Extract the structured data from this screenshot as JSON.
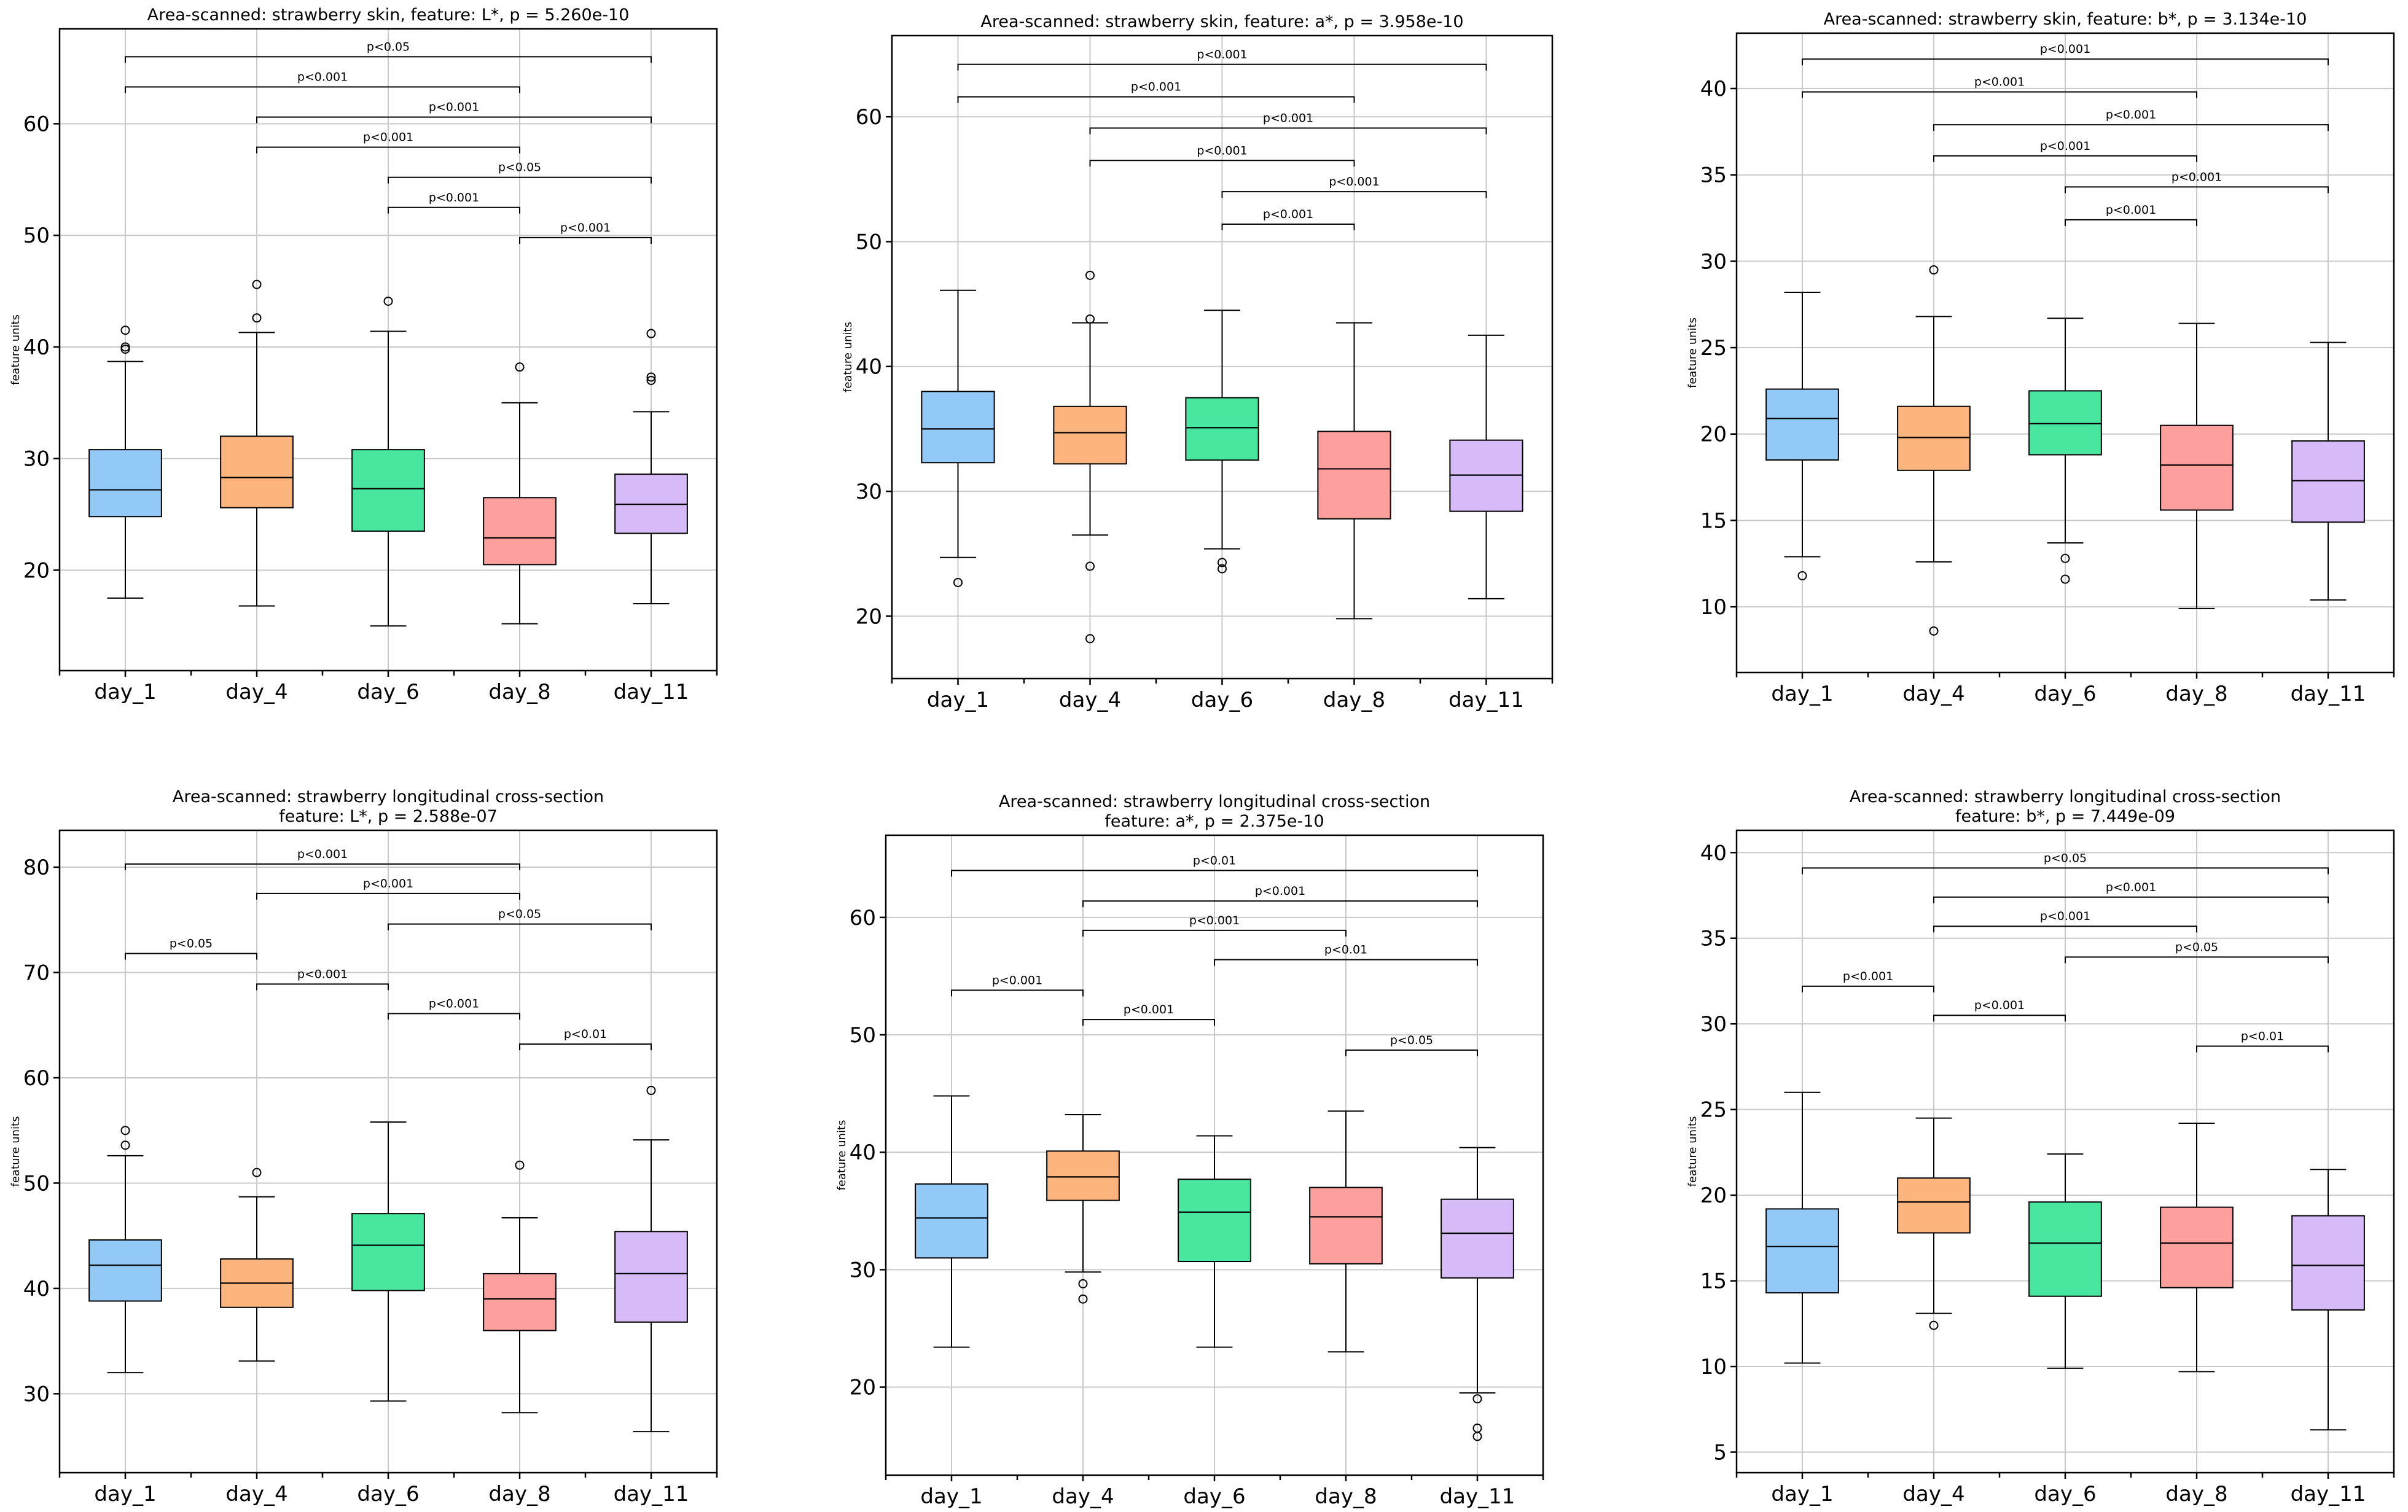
{
  "figure": {
    "colors": {
      "day_1": "#92c9f6",
      "day_4": "#fdb47d",
      "day_6": "#49e6a0",
      "day_8": "#fd9f9c",
      "day_11": "#d7bbf9",
      "grid": "#c9c9c9",
      "ink": "#000000"
    }
  },
  "chart_data": [
    {
      "type": "box",
      "title": [
        "Area-scanned: strawberry skin, feature: L*, p = 5.260e-10"
      ],
      "ylabel": "feature units",
      "categories": [
        "day_1",
        "day_4",
        "day_6",
        "day_8",
        "day_11"
      ],
      "ylim": [
        11,
        68.5
      ],
      "yticks": [
        20,
        30,
        40,
        50,
        60
      ],
      "boxes": [
        {
          "name": "day_1",
          "whislo": 17.5,
          "q1": 24.8,
          "med": 27.2,
          "q3": 30.8,
          "whishi": 38.7,
          "fliers": [
            39.8,
            40.0,
            41.5
          ]
        },
        {
          "name": "day_4",
          "whislo": 16.8,
          "q1": 25.6,
          "med": 28.3,
          "q3": 32.0,
          "whishi": 41.3,
          "fliers": [
            42.6,
            45.6
          ]
        },
        {
          "name": "day_6",
          "whislo": 15.0,
          "q1": 23.5,
          "med": 27.3,
          "q3": 30.8,
          "whishi": 41.4,
          "fliers": [
            44.1
          ]
        },
        {
          "name": "day_8",
          "whislo": 15.2,
          "q1": 20.5,
          "med": 22.9,
          "q3": 26.5,
          "whishi": 35.0,
          "fliers": [
            38.2
          ]
        },
        {
          "name": "day_11",
          "whislo": 17.0,
          "q1": 23.3,
          "med": 25.9,
          "q3": 28.6,
          "whishi": 34.2,
          "fliers": [
            37.0,
            37.3,
            41.2
          ]
        }
      ],
      "brackets": [
        {
          "from": 0,
          "to": 4,
          "y": 66.0,
          "label": "p<0.05"
        },
        {
          "from": 0,
          "to": 3,
          "y": 63.3,
          "label": "p<0.001"
        },
        {
          "from": 1,
          "to": 4,
          "y": 60.6,
          "label": "p<0.001"
        },
        {
          "from": 1,
          "to": 3,
          "y": 57.9,
          "label": "p<0.001"
        },
        {
          "from": 2,
          "to": 4,
          "y": 55.2,
          "label": "p<0.05"
        },
        {
          "from": 2,
          "to": 3,
          "y": 52.5,
          "label": "p<0.001"
        },
        {
          "from": 3,
          "to": 4,
          "y": 49.8,
          "label": "p<0.001"
        }
      ]
    },
    {
      "type": "box",
      "title": [
        "Area-scanned: strawberry skin, feature: a*, p = 3.958e-10"
      ],
      "ylabel": "feature units",
      "categories": [
        "day_1",
        "day_4",
        "day_6",
        "day_8",
        "day_11"
      ],
      "ylim": [
        15,
        66.5
      ],
      "yticks": [
        20,
        30,
        40,
        50,
        60
      ],
      "boxes": [
        {
          "name": "day_1",
          "whislo": 24.7,
          "q1": 32.3,
          "med": 35.0,
          "q3": 38.0,
          "whishi": 46.1,
          "fliers": [
            22.7
          ]
        },
        {
          "name": "day_4",
          "whislo": 26.5,
          "q1": 32.2,
          "med": 34.7,
          "q3": 36.8,
          "whishi": 43.5,
          "fliers": [
            24.0,
            18.2,
            43.8,
            47.3
          ]
        },
        {
          "name": "day_6",
          "whislo": 25.4,
          "q1": 32.5,
          "med": 35.1,
          "q3": 37.5,
          "whishi": 44.5,
          "fliers": [
            23.8,
            24.3
          ]
        },
        {
          "name": "day_8",
          "whislo": 19.8,
          "q1": 27.8,
          "med": 31.8,
          "q3": 34.8,
          "whishi": 43.5,
          "fliers": []
        },
        {
          "name": "day_11",
          "whislo": 21.4,
          "q1": 28.4,
          "med": 31.3,
          "q3": 34.1,
          "whishi": 42.5,
          "fliers": []
        }
      ],
      "brackets": [
        {
          "from": 0,
          "to": 4,
          "y": 64.2,
          "label": "p<0.001"
        },
        {
          "from": 0,
          "to": 3,
          "y": 61.6,
          "label": "p<0.001"
        },
        {
          "from": 1,
          "to": 4,
          "y": 59.1,
          "label": "p<0.001"
        },
        {
          "from": 1,
          "to": 3,
          "y": 56.5,
          "label": "p<0.001"
        },
        {
          "from": 2,
          "to": 4,
          "y": 54.0,
          "label": "p<0.001"
        },
        {
          "from": 2,
          "to": 3,
          "y": 51.4,
          "label": "p<0.001"
        }
      ]
    },
    {
      "type": "box",
      "title": [
        "Area-scanned: strawberry skin, feature: b*, p = 3.134e-10"
      ],
      "ylabel": "feature units",
      "categories": [
        "day_1",
        "day_4",
        "day_6",
        "day_8",
        "day_11"
      ],
      "ylim": [
        6.2,
        43.2
      ],
      "yticks": [
        10,
        15,
        20,
        25,
        30,
        35,
        40
      ],
      "boxes": [
        {
          "name": "day_1",
          "whislo": 12.9,
          "q1": 18.5,
          "med": 20.9,
          "q3": 22.6,
          "whishi": 28.2,
          "fliers": [
            11.8
          ]
        },
        {
          "name": "day_4",
          "whislo": 12.6,
          "q1": 17.9,
          "med": 19.8,
          "q3": 21.6,
          "whishi": 26.8,
          "fliers": [
            8.6,
            29.5
          ]
        },
        {
          "name": "day_6",
          "whislo": 13.7,
          "q1": 18.8,
          "med": 20.6,
          "q3": 22.5,
          "whishi": 26.7,
          "fliers": [
            12.8,
            11.6
          ]
        },
        {
          "name": "day_8",
          "whislo": 9.9,
          "q1": 15.6,
          "med": 18.2,
          "q3": 20.5,
          "whishi": 26.4,
          "fliers": []
        },
        {
          "name": "day_11",
          "whislo": 10.4,
          "q1": 14.9,
          "med": 17.3,
          "q3": 19.6,
          "whishi": 25.3,
          "fliers": []
        }
      ],
      "brackets": [
        {
          "from": 0,
          "to": 4,
          "y": 41.7,
          "label": "p<0.001"
        },
        {
          "from": 0,
          "to": 3,
          "y": 39.8,
          "label": "p<0.001"
        },
        {
          "from": 1,
          "to": 4,
          "y": 37.9,
          "label": "p<0.001"
        },
        {
          "from": 1,
          "to": 3,
          "y": 36.1,
          "label": "p<0.001"
        },
        {
          "from": 2,
          "to": 4,
          "y": 34.3,
          "label": "p<0.001"
        },
        {
          "from": 2,
          "to": 3,
          "y": 32.4,
          "label": "p<0.001"
        }
      ]
    },
    {
      "type": "box",
      "title": [
        "Area-scanned: strawberry longitudinal cross-section",
        "feature: L*, p = 2.588e-07"
      ],
      "ylabel": "feature units",
      "categories": [
        "day_1",
        "day_4",
        "day_6",
        "day_8",
        "day_11"
      ],
      "ylim": [
        22.5,
        83.5
      ],
      "yticks": [
        30,
        40,
        50,
        60,
        70,
        80
      ],
      "boxes": [
        {
          "name": "day_1",
          "whislo": 32.0,
          "q1": 38.8,
          "med": 42.2,
          "q3": 44.6,
          "whishi": 52.6,
          "fliers": [
            53.6,
            55.0
          ]
        },
        {
          "name": "day_4",
          "whislo": 33.1,
          "q1": 38.2,
          "med": 40.5,
          "q3": 42.8,
          "whishi": 48.7,
          "fliers": [
            51.0
          ]
        },
        {
          "name": "day_6",
          "whislo": 29.3,
          "q1": 39.8,
          "med": 44.1,
          "q3": 47.1,
          "whishi": 55.8,
          "fliers": []
        },
        {
          "name": "day_8",
          "whislo": 28.2,
          "q1": 36.0,
          "med": 39.0,
          "q3": 41.4,
          "whishi": 46.7,
          "fliers": [
            51.7
          ]
        },
        {
          "name": "day_11",
          "whislo": 26.4,
          "q1": 36.8,
          "med": 41.4,
          "q3": 45.4,
          "whishi": 54.1,
          "fliers": [
            58.8
          ]
        }
      ],
      "brackets": [
        {
          "from": 0,
          "to": 3,
          "y": 80.3,
          "label": "p<0.001"
        },
        {
          "from": 1,
          "to": 3,
          "y": 77.5,
          "label": "p<0.001"
        },
        {
          "from": 2,
          "to": 4,
          "y": 74.6,
          "label": "p<0.05"
        },
        {
          "from": 0,
          "to": 1,
          "y": 71.8,
          "label": "p<0.05"
        },
        {
          "from": 1,
          "to": 2,
          "y": 68.9,
          "label": "p<0.001"
        },
        {
          "from": 2,
          "to": 3,
          "y": 66.1,
          "label": "p<0.001"
        },
        {
          "from": 3,
          "to": 4,
          "y": 63.2,
          "label": "p<0.01"
        }
      ]
    },
    {
      "type": "box",
      "title": [
        "Area-scanned: strawberry longitudinal cross-section",
        "feature: a*, p = 2.375e-10"
      ],
      "ylabel": "feature units",
      "categories": [
        "day_1",
        "day_4",
        "day_6",
        "day_8",
        "day_11"
      ],
      "ylim": [
        12.5,
        67
      ],
      "yticks": [
        20,
        30,
        40,
        50,
        60
      ],
      "boxes": [
        {
          "name": "day_1",
          "whislo": 23.4,
          "q1": 31.0,
          "med": 34.4,
          "q3": 37.3,
          "whishi": 44.8,
          "fliers": []
        },
        {
          "name": "day_4",
          "whislo": 29.8,
          "q1": 35.9,
          "med": 37.9,
          "q3": 40.1,
          "whishi": 43.2,
          "fliers": [
            28.8,
            27.5
          ]
        },
        {
          "name": "day_6",
          "whislo": 23.4,
          "q1": 30.7,
          "med": 34.9,
          "q3": 37.7,
          "whishi": 41.4,
          "fliers": []
        },
        {
          "name": "day_8",
          "whislo": 23.0,
          "q1": 30.5,
          "med": 34.5,
          "q3": 37.0,
          "whishi": 43.5,
          "fliers": []
        },
        {
          "name": "day_11",
          "whislo": 19.5,
          "q1": 29.3,
          "med": 33.1,
          "q3": 36.0,
          "whishi": 40.4,
          "fliers": [
            19.0,
            16.5,
            15.8
          ]
        }
      ],
      "brackets": [
        {
          "from": 0,
          "to": 4,
          "y": 64.0,
          "label": "p<0.01"
        },
        {
          "from": 1,
          "to": 4,
          "y": 61.4,
          "label": "p<0.001"
        },
        {
          "from": 1,
          "to": 3,
          "y": 58.9,
          "label": "p<0.001"
        },
        {
          "from": 2,
          "to": 4,
          "y": 56.4,
          "label": "p<0.01"
        },
        {
          "from": 0,
          "to": 1,
          "y": 53.8,
          "label": "p<0.001"
        },
        {
          "from": 1,
          "to": 2,
          "y": 51.3,
          "label": "p<0.001"
        },
        {
          "from": 3,
          "to": 4,
          "y": 48.7,
          "label": "p<0.05"
        }
      ]
    },
    {
      "type": "box",
      "title": [
        "Area-scanned: strawberry longitudinal cross-section",
        "feature: b*, p = 7.449e-09"
      ],
      "ylabel": "feature units",
      "categories": [
        "day_1",
        "day_4",
        "day_6",
        "day_8",
        "day_11"
      ],
      "ylim": [
        3.8,
        41.3
      ],
      "yticks": [
        5,
        10,
        15,
        20,
        25,
        30,
        35,
        40
      ],
      "boxes": [
        {
          "name": "day_1",
          "whislo": 10.2,
          "q1": 14.3,
          "med": 17.0,
          "q3": 19.2,
          "whishi": 26.0,
          "fliers": []
        },
        {
          "name": "day_4",
          "whislo": 13.1,
          "q1": 17.8,
          "med": 19.6,
          "q3": 21.0,
          "whishi": 24.5,
          "fliers": [
            12.4
          ]
        },
        {
          "name": "day_6",
          "whislo": 9.9,
          "q1": 14.1,
          "med": 17.2,
          "q3": 19.6,
          "whishi": 22.4,
          "fliers": []
        },
        {
          "name": "day_8",
          "whislo": 9.7,
          "q1": 14.6,
          "med": 17.2,
          "q3": 19.3,
          "whishi": 24.2,
          "fliers": []
        },
        {
          "name": "day_11",
          "whislo": 6.3,
          "q1": 13.3,
          "med": 15.9,
          "q3": 18.8,
          "whishi": 21.5,
          "fliers": []
        }
      ],
      "brackets": [
        {
          "from": 0,
          "to": 4,
          "y": 39.1,
          "label": "p<0.05"
        },
        {
          "from": 1,
          "to": 4,
          "y": 37.4,
          "label": "p<0.001"
        },
        {
          "from": 1,
          "to": 3,
          "y": 35.7,
          "label": "p<0.001"
        },
        {
          "from": 2,
          "to": 4,
          "y": 33.9,
          "label": "p<0.05"
        },
        {
          "from": 0,
          "to": 1,
          "y": 32.2,
          "label": "p<0.001"
        },
        {
          "from": 1,
          "to": 2,
          "y": 30.5,
          "label": "p<0.001"
        },
        {
          "from": 3,
          "to": 4,
          "y": 28.7,
          "label": "p<0.01"
        }
      ]
    }
  ]
}
